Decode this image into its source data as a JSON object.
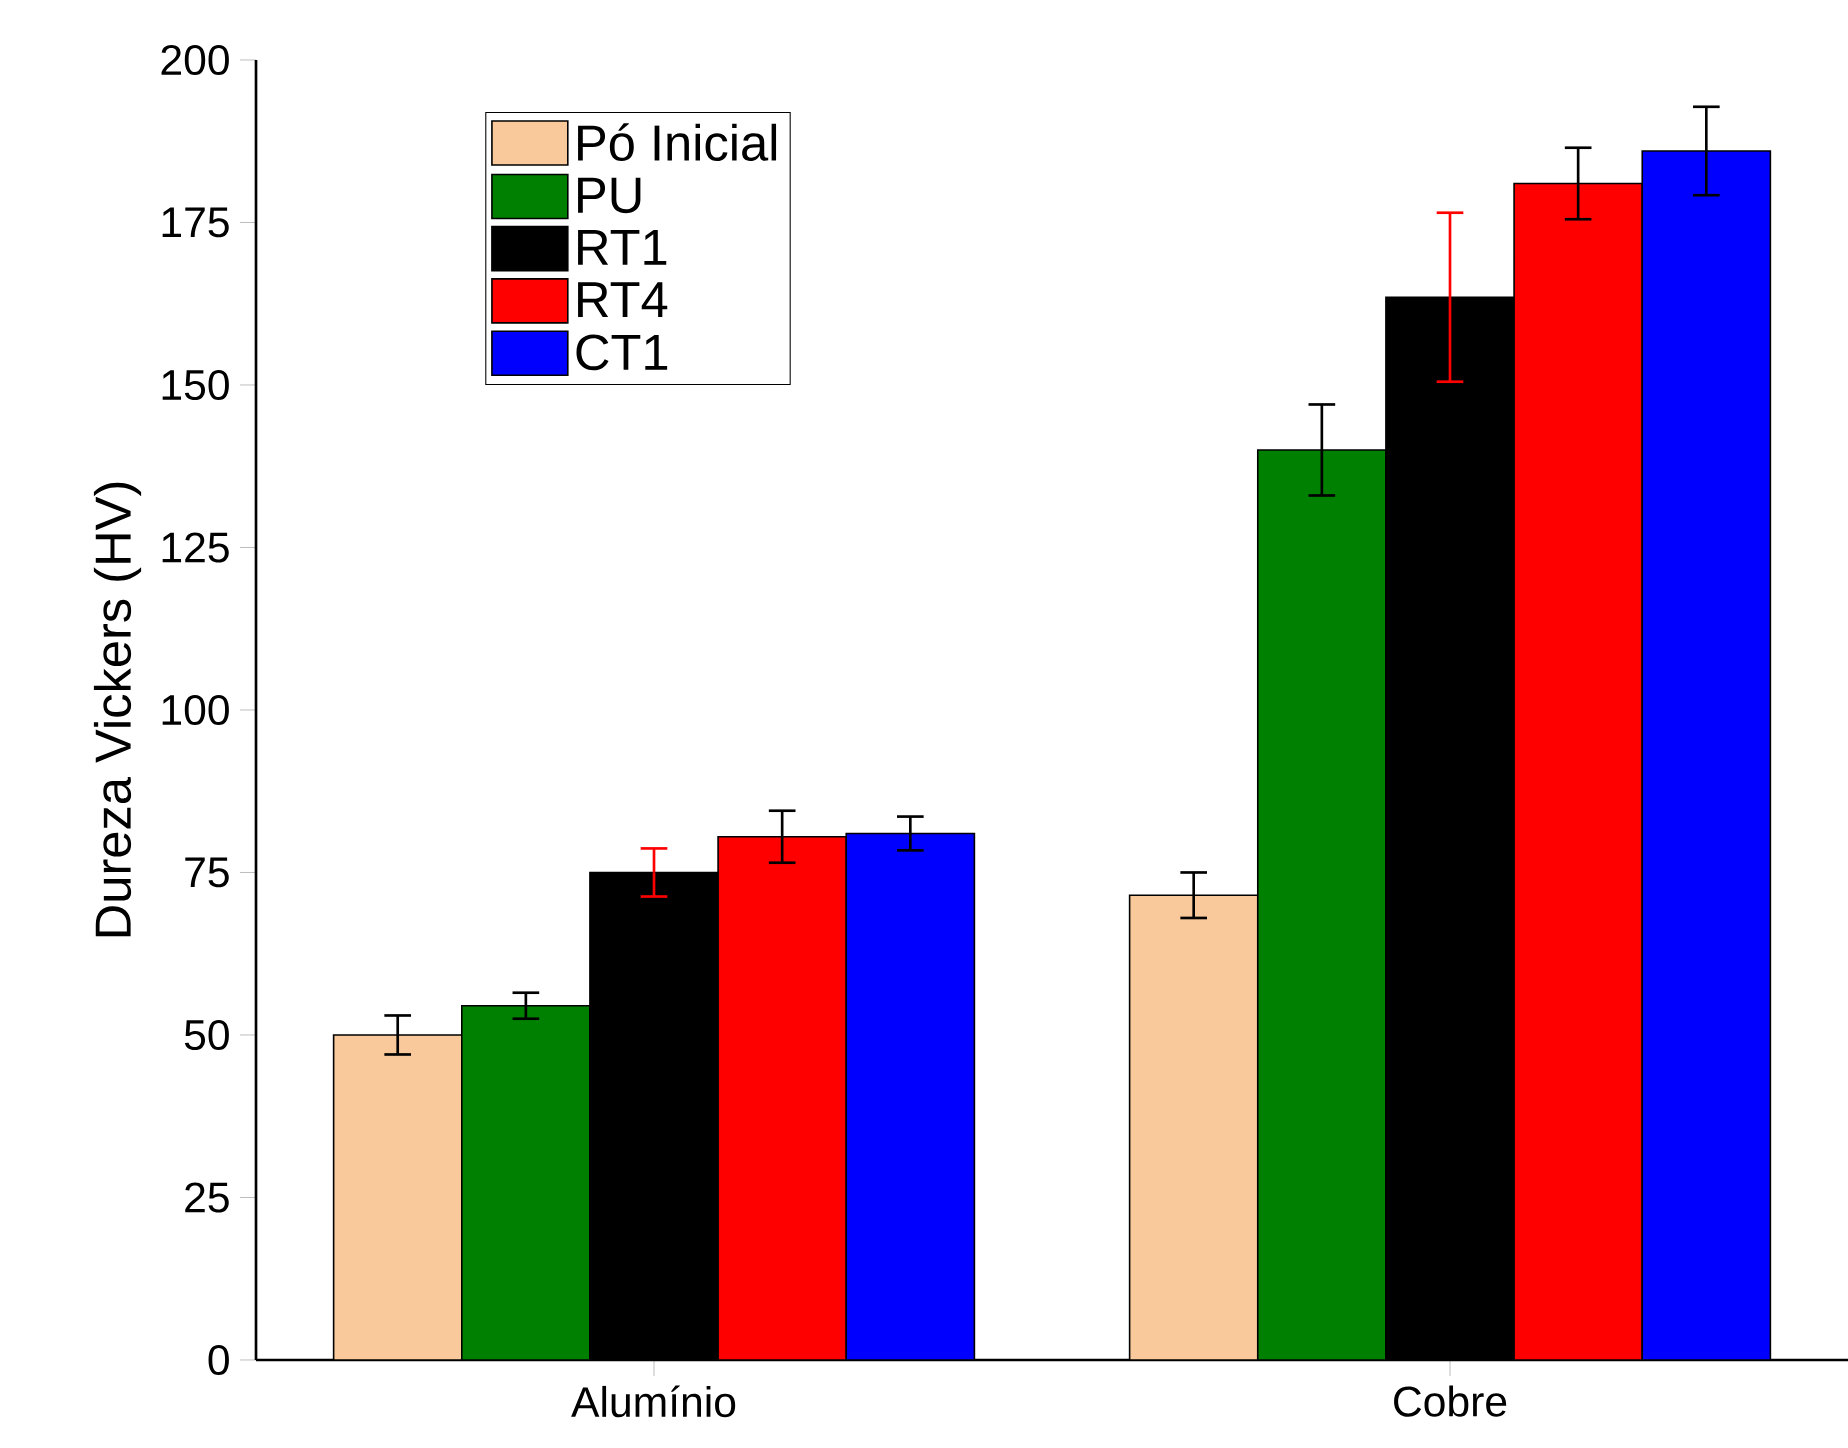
{
  "chart_data": {
    "type": "bar",
    "ylabel": "Dureza Vickers (HV)",
    "categories": [
      "Alumínio",
      "Cobre"
    ],
    "series": [
      {
        "name": "Pó Inicial",
        "color": "#f9c89b",
        "values": [
          50,
          71.5
        ],
        "errors": [
          3,
          3.5
        ]
      },
      {
        "name": "PU",
        "color": "#008000",
        "values": [
          54.5,
          140
        ],
        "errors": [
          2,
          7
        ]
      },
      {
        "name": "RT1",
        "color": "#000000",
        "values": [
          75,
          163.5
        ],
        "errors": [
          3.7,
          13
        ]
      },
      {
        "name": "RT4",
        "color": "#ff0000",
        "values": [
          80.5,
          181
        ],
        "errors": [
          4,
          5.5
        ]
      },
      {
        "name": "CT1",
        "color": "#0000ff",
        "values": [
          81,
          186
        ],
        "errors": [
          2.6,
          6.8
        ]
      }
    ],
    "ylim": [
      0,
      200
    ],
    "yticks": [
      0,
      25,
      50,
      75,
      100,
      125,
      150,
      175,
      200
    ],
    "legend": "top left",
    "grid": false
  }
}
